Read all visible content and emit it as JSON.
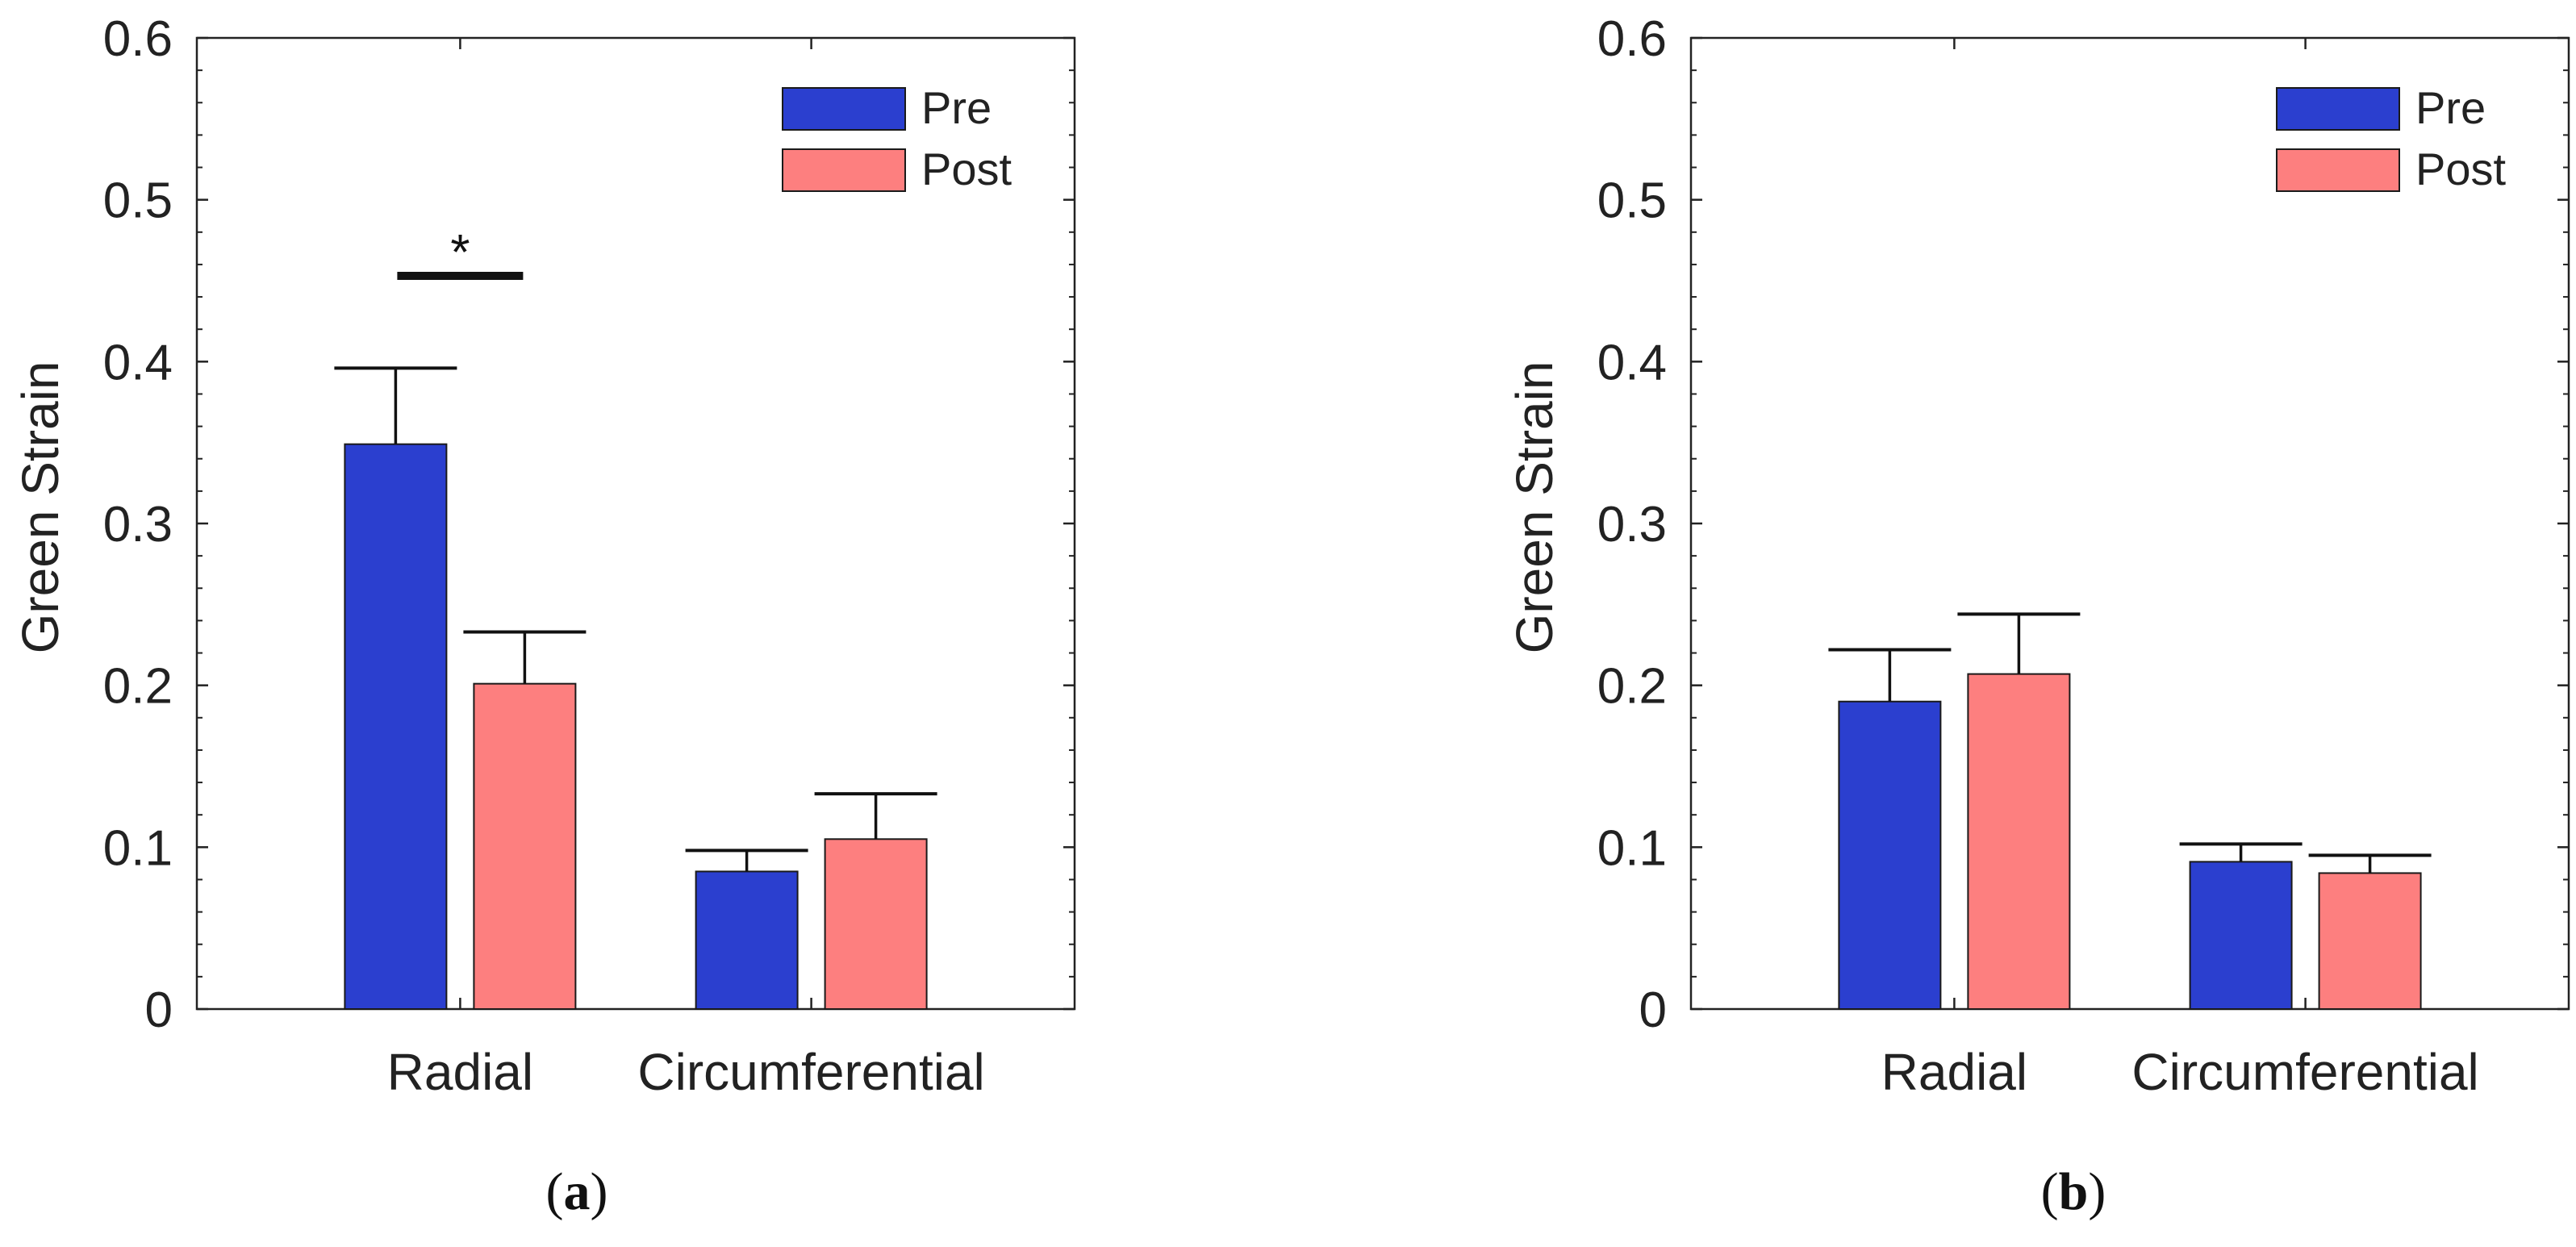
{
  "colors": {
    "pre": "#2b3fcf",
    "post": "#fd7f7f",
    "axis": "#222222",
    "text": "#222222"
  },
  "chart_data": [
    {
      "type": "bar",
      "panel_label": "a",
      "categories": [
        "Radial",
        "Circumferential"
      ],
      "series": [
        {
          "name": "Pre",
          "values": [
            0.349,
            0.085
          ],
          "errors": [
            0.047,
            0.013
          ]
        },
        {
          "name": "Post",
          "values": [
            0.201,
            0.105
          ],
          "errors": [
            0.032,
            0.028
          ]
        }
      ],
      "ylabel": "Green Strain",
      "xlabel": "",
      "ylim": [
        0,
        0.6
      ],
      "yticks": [
        "0",
        "0.1",
        "0.2",
        "0.3",
        "0.4",
        "0.5",
        "0.6"
      ],
      "legend": "top-right",
      "significance": {
        "category": "Radial",
        "symbol": "*",
        "level": 0.453
      }
    },
    {
      "type": "bar",
      "panel_label": "b",
      "categories": [
        "Radial",
        "Circumferential"
      ],
      "series": [
        {
          "name": "Pre",
          "values": [
            0.19,
            0.091
          ],
          "errors": [
            0.032,
            0.011
          ]
        },
        {
          "name": "Post",
          "values": [
            0.207,
            0.084
          ],
          "errors": [
            0.037,
            0.011
          ]
        }
      ],
      "ylabel": "Green Strain",
      "xlabel": "",
      "ylim": [
        0,
        0.6
      ],
      "yticks": [
        "0",
        "0.1",
        "0.2",
        "0.3",
        "0.4",
        "0.5",
        "0.6"
      ],
      "legend": "top-right"
    }
  ],
  "captions": [
    {
      "open": "(",
      "label": "a",
      "close": ")"
    },
    {
      "open": "(",
      "label": "b",
      "close": ")"
    }
  ]
}
